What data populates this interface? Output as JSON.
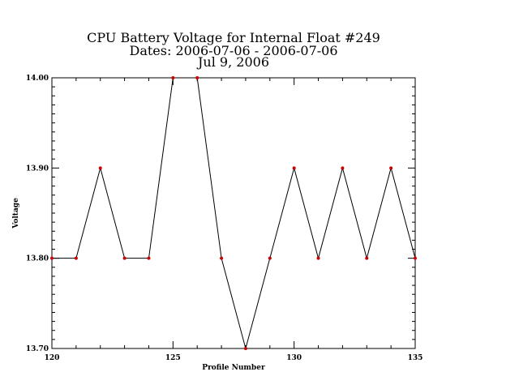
{
  "chart_data": {
    "type": "line",
    "title_lines": [
      "CPU Battery Voltage for Internal Float #249",
      "Dates:  2006-07-06 -  2006-07-06",
      "Jul  9, 2006"
    ],
    "xlabel": "Profile Number",
    "ylabel": "Voltage",
    "xlim": [
      120,
      135
    ],
    "ylim": [
      13.7,
      14.0
    ],
    "x_ticks": [
      120,
      125,
      130,
      135
    ],
    "x_tick_labels": [
      "120",
      "125",
      "130",
      "135"
    ],
    "y_ticks": [
      13.7,
      13.8,
      13.9,
      14.0
    ],
    "y_tick_labels": [
      "13.70",
      "13.80",
      "13.90",
      "14.00"
    ],
    "grid": false,
    "line_color": "#000000",
    "marker_color": "#cc0000",
    "series": [
      {
        "x": [
          120,
          121,
          122,
          123,
          124,
          125,
          126,
          127,
          128,
          129,
          130,
          131,
          132,
          133,
          134,
          135
        ],
        "y": [
          13.8,
          13.8,
          13.9,
          13.8,
          13.8,
          14.0,
          14.0,
          13.8,
          13.7,
          13.8,
          13.9,
          13.8,
          13.9,
          13.8,
          13.9,
          13.8
        ]
      }
    ]
  }
}
